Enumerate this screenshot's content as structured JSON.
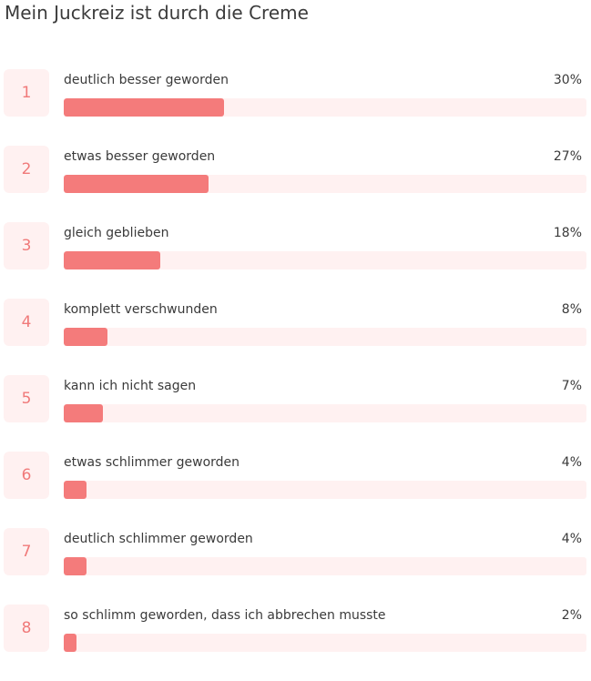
{
  "title": "Mein Juckreiz ist durch die Creme",
  "accent_color": "#f47b7b",
  "track_color": "#fff1f1",
  "chart_data": {
    "type": "bar",
    "title": "Mein Juckreiz ist durch die Creme",
    "categories": [
      "deutlich besser geworden",
      "etwas besser geworden",
      "gleich geblieben",
      "komplett verschwunden",
      "kann ich nicht sagen",
      "etwas schlimmer geworden",
      "deutlich schlimmer geworden",
      "so schlimm geworden, dass ich abbrechen musste"
    ],
    "values": [
      30,
      27,
      18,
      8,
      7,
      4,
      4,
      2
    ],
    "value_labels": [
      "30%",
      "27%",
      "18%",
      "8%",
      "7%",
      "4%",
      "4%",
      "2%"
    ],
    "ranks": [
      "1",
      "2",
      "3",
      "4",
      "5",
      "6",
      "7",
      "8"
    ],
    "unit": "%",
    "xlim": [
      0,
      100
    ]
  }
}
